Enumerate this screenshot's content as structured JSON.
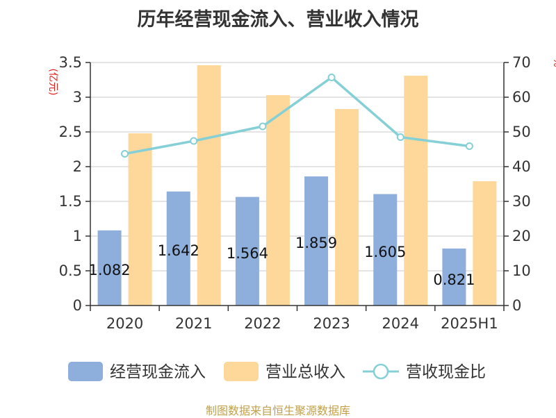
{
  "title": "历年经营现金流入、营业收入情况",
  "source": "制图数据来自恒生聚源数据库",
  "chart_data": {
    "type": "bar",
    "title": "历年经营现金流入、营业收入情况",
    "categories": [
      "2020",
      "2021",
      "2022",
      "2023",
      "2024",
      "2025H1"
    ],
    "y_left_unit": "(亿元)",
    "y_right_unit": "%",
    "ylim_left": [
      0,
      3.5
    ],
    "ylim_right": [
      0,
      70
    ],
    "left_ticks": [
      "0",
      "0.5",
      "1",
      "1.5",
      "2",
      "2.5",
      "3",
      "3.5"
    ],
    "right_ticks": [
      "0",
      "10",
      "20",
      "30",
      "40",
      "50",
      "60",
      "70"
    ],
    "grid": true,
    "legend_position": "bottom",
    "series": [
      {
        "name": "经营现金流入",
        "type": "bar",
        "axis": "left",
        "color": "#8eaedc",
        "values": [
          1.082,
          1.642,
          1.564,
          1.859,
          1.605,
          0.821
        ],
        "labels": [
          "1.082",
          "1.642",
          "1.564",
          "1.859",
          "1.605",
          "0.821"
        ]
      },
      {
        "name": "营业总收入",
        "type": "bar",
        "axis": "left",
        "color": "#fdd89a",
        "values": [
          2.48,
          3.46,
          3.03,
          2.83,
          3.31,
          1.79
        ]
      },
      {
        "name": "营收现金比",
        "type": "line",
        "axis": "right",
        "color": "#85d0d6",
        "values": [
          43.7,
          47.4,
          51.6,
          65.7,
          48.5,
          45.9
        ]
      }
    ]
  }
}
